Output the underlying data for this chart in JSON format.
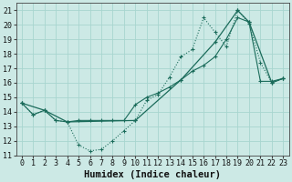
{
  "xlabel": "Humidex (Indice chaleur)",
  "xlim": [
    -0.5,
    23.5
  ],
  "ylim": [
    11,
    21.5
  ],
  "xticks": [
    0,
    1,
    2,
    3,
    4,
    5,
    6,
    7,
    8,
    9,
    10,
    11,
    12,
    13,
    14,
    15,
    16,
    17,
    18,
    19,
    20,
    21,
    22,
    23
  ],
  "yticks": [
    11,
    12,
    13,
    14,
    15,
    16,
    17,
    18,
    19,
    20,
    21
  ],
  "background_color": "#cce9e5",
  "grid_color": "#a8d5cf",
  "line_color": "#1a6b5a",
  "line1_x": [
    0,
    1,
    2,
    3,
    4,
    5,
    6,
    7,
    8,
    9,
    10,
    11,
    12,
    13,
    14,
    15,
    16,
    17,
    18,
    19,
    20,
    21,
    22,
    23
  ],
  "line1_y": [
    14.6,
    13.8,
    14.1,
    13.4,
    13.3,
    11.7,
    11.3,
    11.4,
    12.0,
    12.7,
    13.4,
    14.8,
    15.2,
    16.4,
    17.8,
    18.3,
    20.5,
    19.5,
    18.5,
    21.0,
    20.1,
    17.4,
    16.0,
    16.3
  ],
  "line2_x": [
    0,
    1,
    2,
    3,
    4,
    5,
    6,
    7,
    8,
    9,
    10,
    11,
    12,
    13,
    14,
    15,
    16,
    17,
    18,
    19,
    20,
    21,
    22,
    23
  ],
  "line2_y": [
    14.6,
    13.8,
    14.1,
    13.4,
    13.3,
    13.4,
    13.4,
    13.4,
    13.4,
    13.4,
    14.5,
    15.0,
    15.3,
    15.7,
    16.2,
    16.8,
    17.2,
    17.8,
    19.0,
    20.5,
    20.2,
    16.1,
    16.1,
    16.3
  ],
  "line3_x": [
    0,
    2,
    4,
    10,
    14,
    17,
    19,
    20,
    22,
    23
  ],
  "line3_y": [
    14.6,
    14.1,
    13.3,
    13.4,
    16.2,
    18.8,
    21.0,
    20.2,
    16.0,
    16.3
  ],
  "font_size_tick": 6,
  "font_size_label": 7.5
}
